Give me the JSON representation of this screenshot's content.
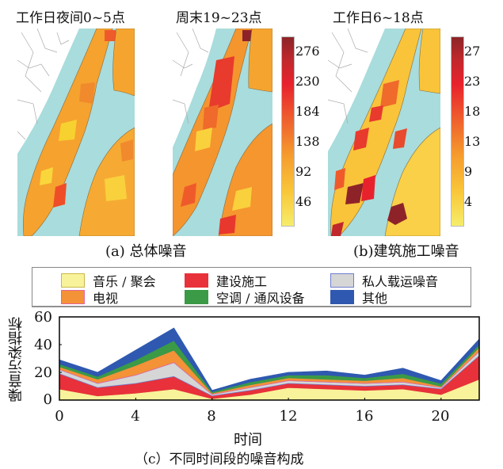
{
  "maps": [
    {
      "title": "工作日夜间0~5点",
      "colorbar_ticks": []
    },
    {
      "title": "周末19~23点",
      "colorbar_ticks": [
        "276",
        "230",
        "184",
        "138",
        "92",
        "46"
      ]
    },
    {
      "title": "工作日6~18点",
      "colorbar_ticks": [
        "27",
        "23",
        "18",
        "13",
        "9",
        "4"
      ]
    }
  ],
  "captions": {
    "a": "(a) 总体噪音",
    "b": "(b)建筑施工噪音",
    "c": "（c）不同时间段的噪音构成"
  },
  "colors": {
    "water": "#a9dcdc",
    "land_low": "#f8e04a",
    "land_mid": "#f5a234",
    "land_high": "#e8372d",
    "land_max": "#8e2229"
  },
  "chart_data": {
    "type": "area",
    "stacked": true,
    "title": "",
    "xlabel": "时间",
    "ylabel": "噪音污染指标",
    "xlim": [
      0,
      22
    ],
    "ylim": [
      0,
      60
    ],
    "x": [
      0,
      2,
      4,
      6,
      8,
      10,
      12,
      14,
      16,
      18,
      20,
      22
    ],
    "xticks": [
      "0",
      "4",
      "8",
      "12",
      "16",
      "20"
    ],
    "yticks": [
      "0",
      "20",
      "40",
      "60"
    ],
    "legend_position": "top",
    "series": [
      {
        "name": "音乐 / 聚会",
        "color": "#f8f29a",
        "edge": "#c9b84a",
        "values": [
          8,
          3,
          5,
          8,
          1,
          4,
          9,
          8,
          7,
          8,
          4,
          15
        ]
      },
      {
        "name": "建设施工",
        "color": "#e8313a",
        "edge": "#e8313a",
        "values": [
          11,
          6,
          7,
          9,
          2,
          3,
          3,
          3,
          3,
          3,
          4,
          17
        ]
      },
      {
        "name": "私人载运噪音",
        "color": "#d6d6d6",
        "edge": "#6f7fd0",
        "values": [
          3,
          3,
          6,
          10,
          1,
          2,
          2,
          2,
          2,
          2,
          1,
          3
        ]
      },
      {
        "name": "电视",
        "color": "#f39236",
        "edge": "#e466a0",
        "values": [
          2,
          3,
          7,
          9,
          1,
          2,
          2,
          2,
          2,
          3,
          1,
          3
        ]
      },
      {
        "name": "空调 / 通风设备",
        "color": "#3a9a46",
        "edge": "#3a9a46",
        "values": [
          2,
          2,
          4,
          7,
          1,
          2,
          2,
          3,
          2,
          3,
          2,
          2
        ]
      },
      {
        "name": "其他",
        "color": "#2f59b0",
        "edge": "#2f59b0",
        "values": [
          3,
          3,
          7,
          9,
          1,
          2,
          2,
          3,
          2,
          4,
          2,
          4
        ]
      }
    ]
  }
}
